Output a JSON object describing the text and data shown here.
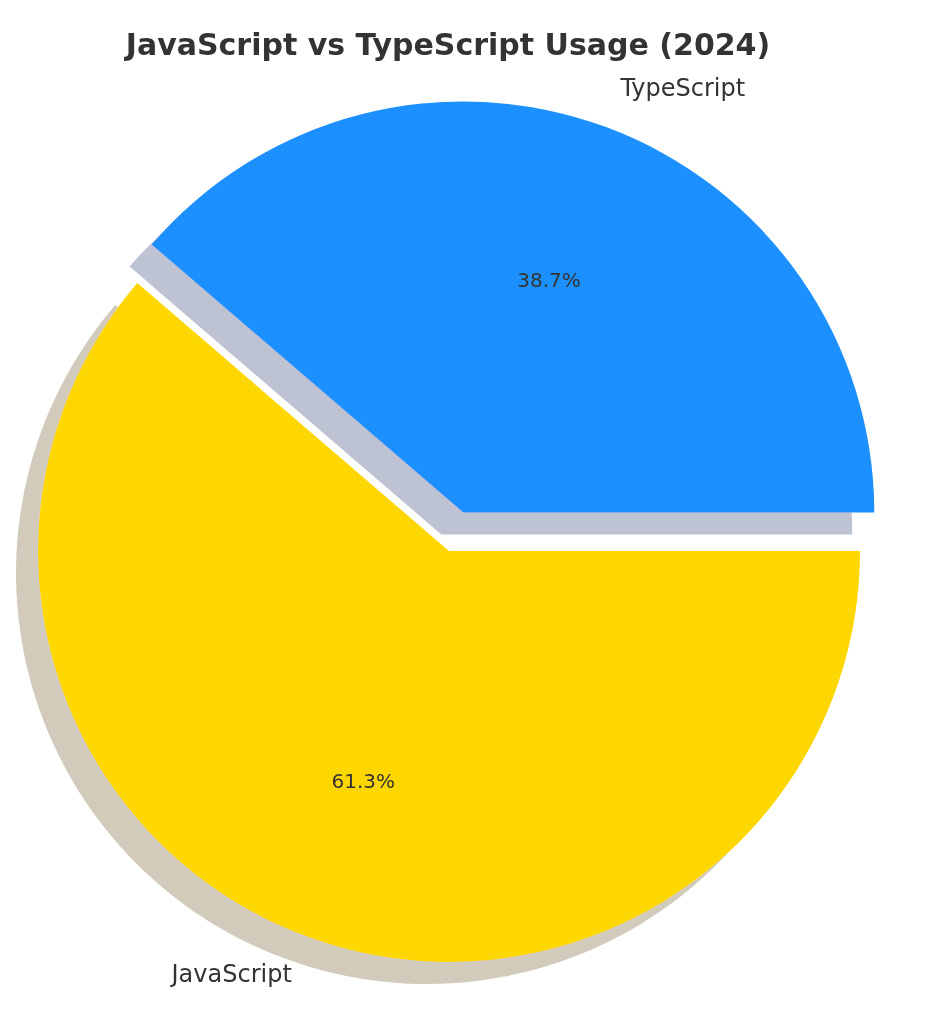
{
  "chart_data": {
    "type": "pie",
    "title": "JavaScript vs TypeScript Usage (2024)",
    "categories": [
      "TypeScript",
      "JavaScript"
    ],
    "values": [
      38.7,
      61.3
    ],
    "colors": [
      "#1e90ff",
      "#ffd700"
    ],
    "value_labels": [
      "38.7%",
      "61.3%"
    ]
  }
}
